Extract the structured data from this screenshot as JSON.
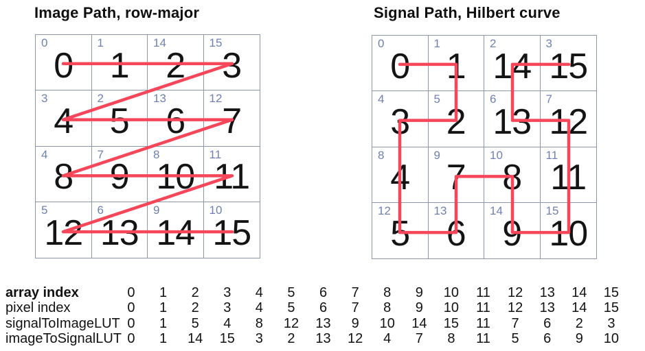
{
  "colors": {
    "path": "#F6465A",
    "grid_line": "#8C96AB",
    "corner_label": "#6F81B1",
    "number": "#141414"
  },
  "panels": [
    {
      "title": "Image Path, row-major",
      "corner_labels": [
        0,
        1,
        14,
        15,
        3,
        2,
        13,
        12,
        4,
        7,
        8,
        11,
        5,
        6,
        9,
        10
      ],
      "cell_numbers": [
        0,
        1,
        2,
        3,
        4,
        5,
        6,
        7,
        8,
        9,
        10,
        11,
        12,
        13,
        14,
        15
      ],
      "path_cell_order": [
        0,
        1,
        2,
        3,
        4,
        5,
        6,
        7,
        8,
        9,
        10,
        11,
        12,
        13,
        14,
        15
      ]
    },
    {
      "title": "Signal Path, Hilbert curve",
      "corner_labels": [
        0,
        1,
        2,
        3,
        4,
        5,
        6,
        7,
        8,
        9,
        10,
        11,
        12,
        13,
        14,
        15
      ],
      "cell_numbers": [
        0,
        1,
        14,
        15,
        3,
        2,
        13,
        12,
        4,
        7,
        8,
        11,
        5,
        6,
        9,
        10
      ],
      "path_cell_order": [
        0,
        1,
        5,
        4,
        8,
        12,
        13,
        9,
        10,
        14,
        15,
        11,
        7,
        6,
        2,
        3
      ]
    }
  ],
  "table": {
    "rows": [
      {
        "label": "array index",
        "bold": true,
        "values": [
          0,
          1,
          2,
          3,
          4,
          5,
          6,
          7,
          8,
          9,
          10,
          11,
          12,
          13,
          14,
          15
        ]
      },
      {
        "label": "pixel index",
        "bold": false,
        "values": [
          0,
          1,
          2,
          3,
          4,
          5,
          6,
          7,
          8,
          9,
          10,
          11,
          12,
          13,
          14,
          15
        ]
      },
      {
        "label": "signalToImageLUT",
        "bold": false,
        "values": [
          0,
          1,
          5,
          4,
          8,
          12,
          13,
          9,
          10,
          14,
          15,
          11,
          7,
          6,
          2,
          3
        ]
      },
      {
        "label": "imageToSignalLUT",
        "bold": false,
        "values": [
          0,
          1,
          14,
          15,
          3,
          2,
          13,
          12,
          4,
          7,
          8,
          11,
          5,
          6,
          9,
          10
        ]
      }
    ]
  }
}
